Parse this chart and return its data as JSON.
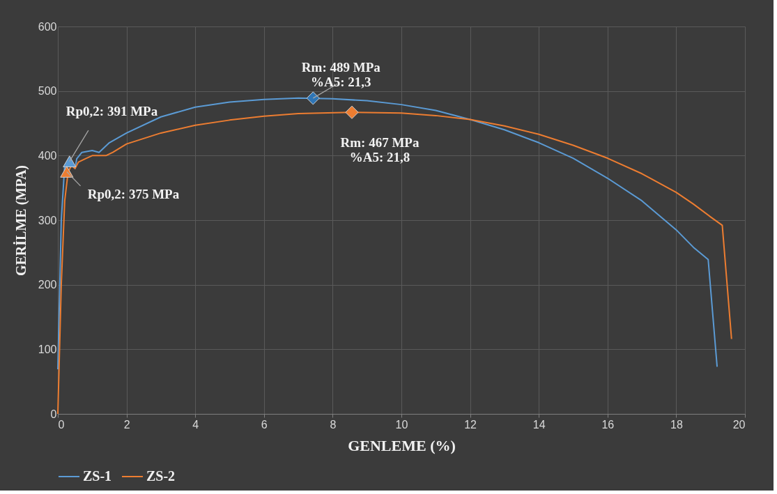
{
  "chart_data": {
    "type": "line",
    "xlabel": "GENLEME (%)",
    "ylabel": "GERİLME (MPA)",
    "xlim": [
      0,
      20
    ],
    "xticks": [
      0,
      2,
      4,
      6,
      8,
      10,
      12,
      14,
      16,
      18,
      20
    ],
    "ylim": [
      0,
      600
    ],
    "yticks": [
      0,
      100,
      200,
      300,
      400,
      500,
      600
    ],
    "grid": true,
    "legend": "bottom",
    "line_style": "solid",
    "marker": "none",
    "series": [
      {
        "name": "ZS-1",
        "color": "#5b9bd5",
        "x": [
          0,
          0.1,
          0.2,
          0.3,
          0.4,
          0.5,
          0.55,
          0.7,
          1.0,
          1.2,
          1.5,
          2,
          3,
          4,
          5,
          6,
          7,
          8,
          9,
          10,
          11,
          12,
          13,
          14,
          15,
          16,
          17,
          18,
          18.5,
          18.93,
          19.19
        ],
        "values": [
          69,
          300,
          385,
          391,
          385,
          380,
          395,
          405,
          408,
          405,
          420,
          435,
          460,
          475,
          483,
          487,
          489,
          488,
          485,
          479,
          470,
          456,
          440,
          420,
          396,
          365,
          330,
          285,
          258,
          239,
          73
        ]
      },
      {
        "name": "ZS-2",
        "color": "#ed7d31",
        "x": [
          0,
          0.1,
          0.2,
          0.3,
          0.4,
          0.5,
          0.6,
          0.8,
          1.0,
          1.4,
          1.6,
          2,
          3,
          4,
          5,
          6,
          7,
          8.5,
          10,
          11,
          12,
          13,
          14,
          15,
          16,
          17,
          18,
          18.5,
          19,
          19.34,
          19.61
        ],
        "values": [
          0,
          200,
          330,
          375,
          385,
          380,
          390,
          395,
          400,
          400,
          405,
          418,
          435,
          447,
          455,
          461,
          465,
          467,
          466,
          462,
          456,
          446,
          433,
          416,
          396,
          372,
          343,
          325,
          305,
          292,
          116
        ]
      },
      {
        "type": "scatter",
        "marker": "triangle",
        "color": "#5b9bd5",
        "x": [
          0.34
        ],
        "values": [
          391
        ]
      },
      {
        "type": "scatter",
        "marker": "triangle",
        "color": "#ed7d31",
        "x": [
          0.26
        ],
        "values": [
          375
        ]
      },
      {
        "type": "scatter",
        "marker": "diamond",
        "color": "#2e75b6",
        "x": [
          7.43
        ],
        "values": [
          489
        ]
      },
      {
        "type": "scatter",
        "marker": "diamond",
        "color": "#ed7d31",
        "x": [
          8.56
        ],
        "values": [
          467
        ]
      }
    ],
    "annotations": [
      {
        "text": "Rp0,2: 391 MPa",
        "x": 0.34,
        "y": 391
      },
      {
        "text": "Rp0,2: 375 MPa",
        "x": 0.26,
        "y": 375
      },
      {
        "text": "Rm: 489 MPa\n%A5: 21,3",
        "x": 7.43,
        "y": 489
      },
      {
        "text": "Rm: 467 MPa\n%A5: 21,8",
        "x": 8.56,
        "y": 467
      }
    ]
  }
}
